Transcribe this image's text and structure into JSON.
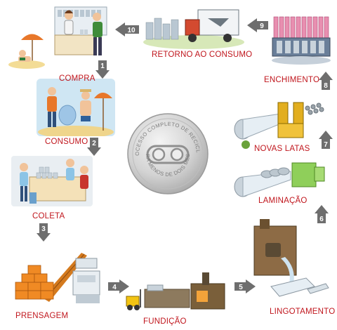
{
  "steps": [
    {
      "number": "1",
      "label": "COMPRA"
    },
    {
      "number": "2",
      "label": "CONSUMO"
    },
    {
      "number": "3",
      "label": "COLETA"
    },
    {
      "number": "4",
      "label": "PRENSAGEM"
    },
    {
      "number": "5",
      "label": "FUNDIÇÃO"
    },
    {
      "number": "6",
      "label": "LINGOTAMENTO"
    },
    {
      "number": "7",
      "label": "LAMINAÇÃO"
    },
    {
      "number": "8",
      "label": "NOVAS LATAS"
    },
    {
      "number": "9",
      "label": "ENCHIMENTO"
    },
    {
      "number": "10",
      "label": "RETORNO AO CONSUMO"
    }
  ],
  "center_coin": {
    "top_text": "O PROCESSO COMPLETO DE RECICLAGEM",
    "bottom_text": "DURA MENOS DE DOIS MESES"
  },
  "colors": {
    "label_red": "#c0161d",
    "arrow_gray": "#6e6e6e",
    "coin_silver": "#d9d9d9"
  }
}
